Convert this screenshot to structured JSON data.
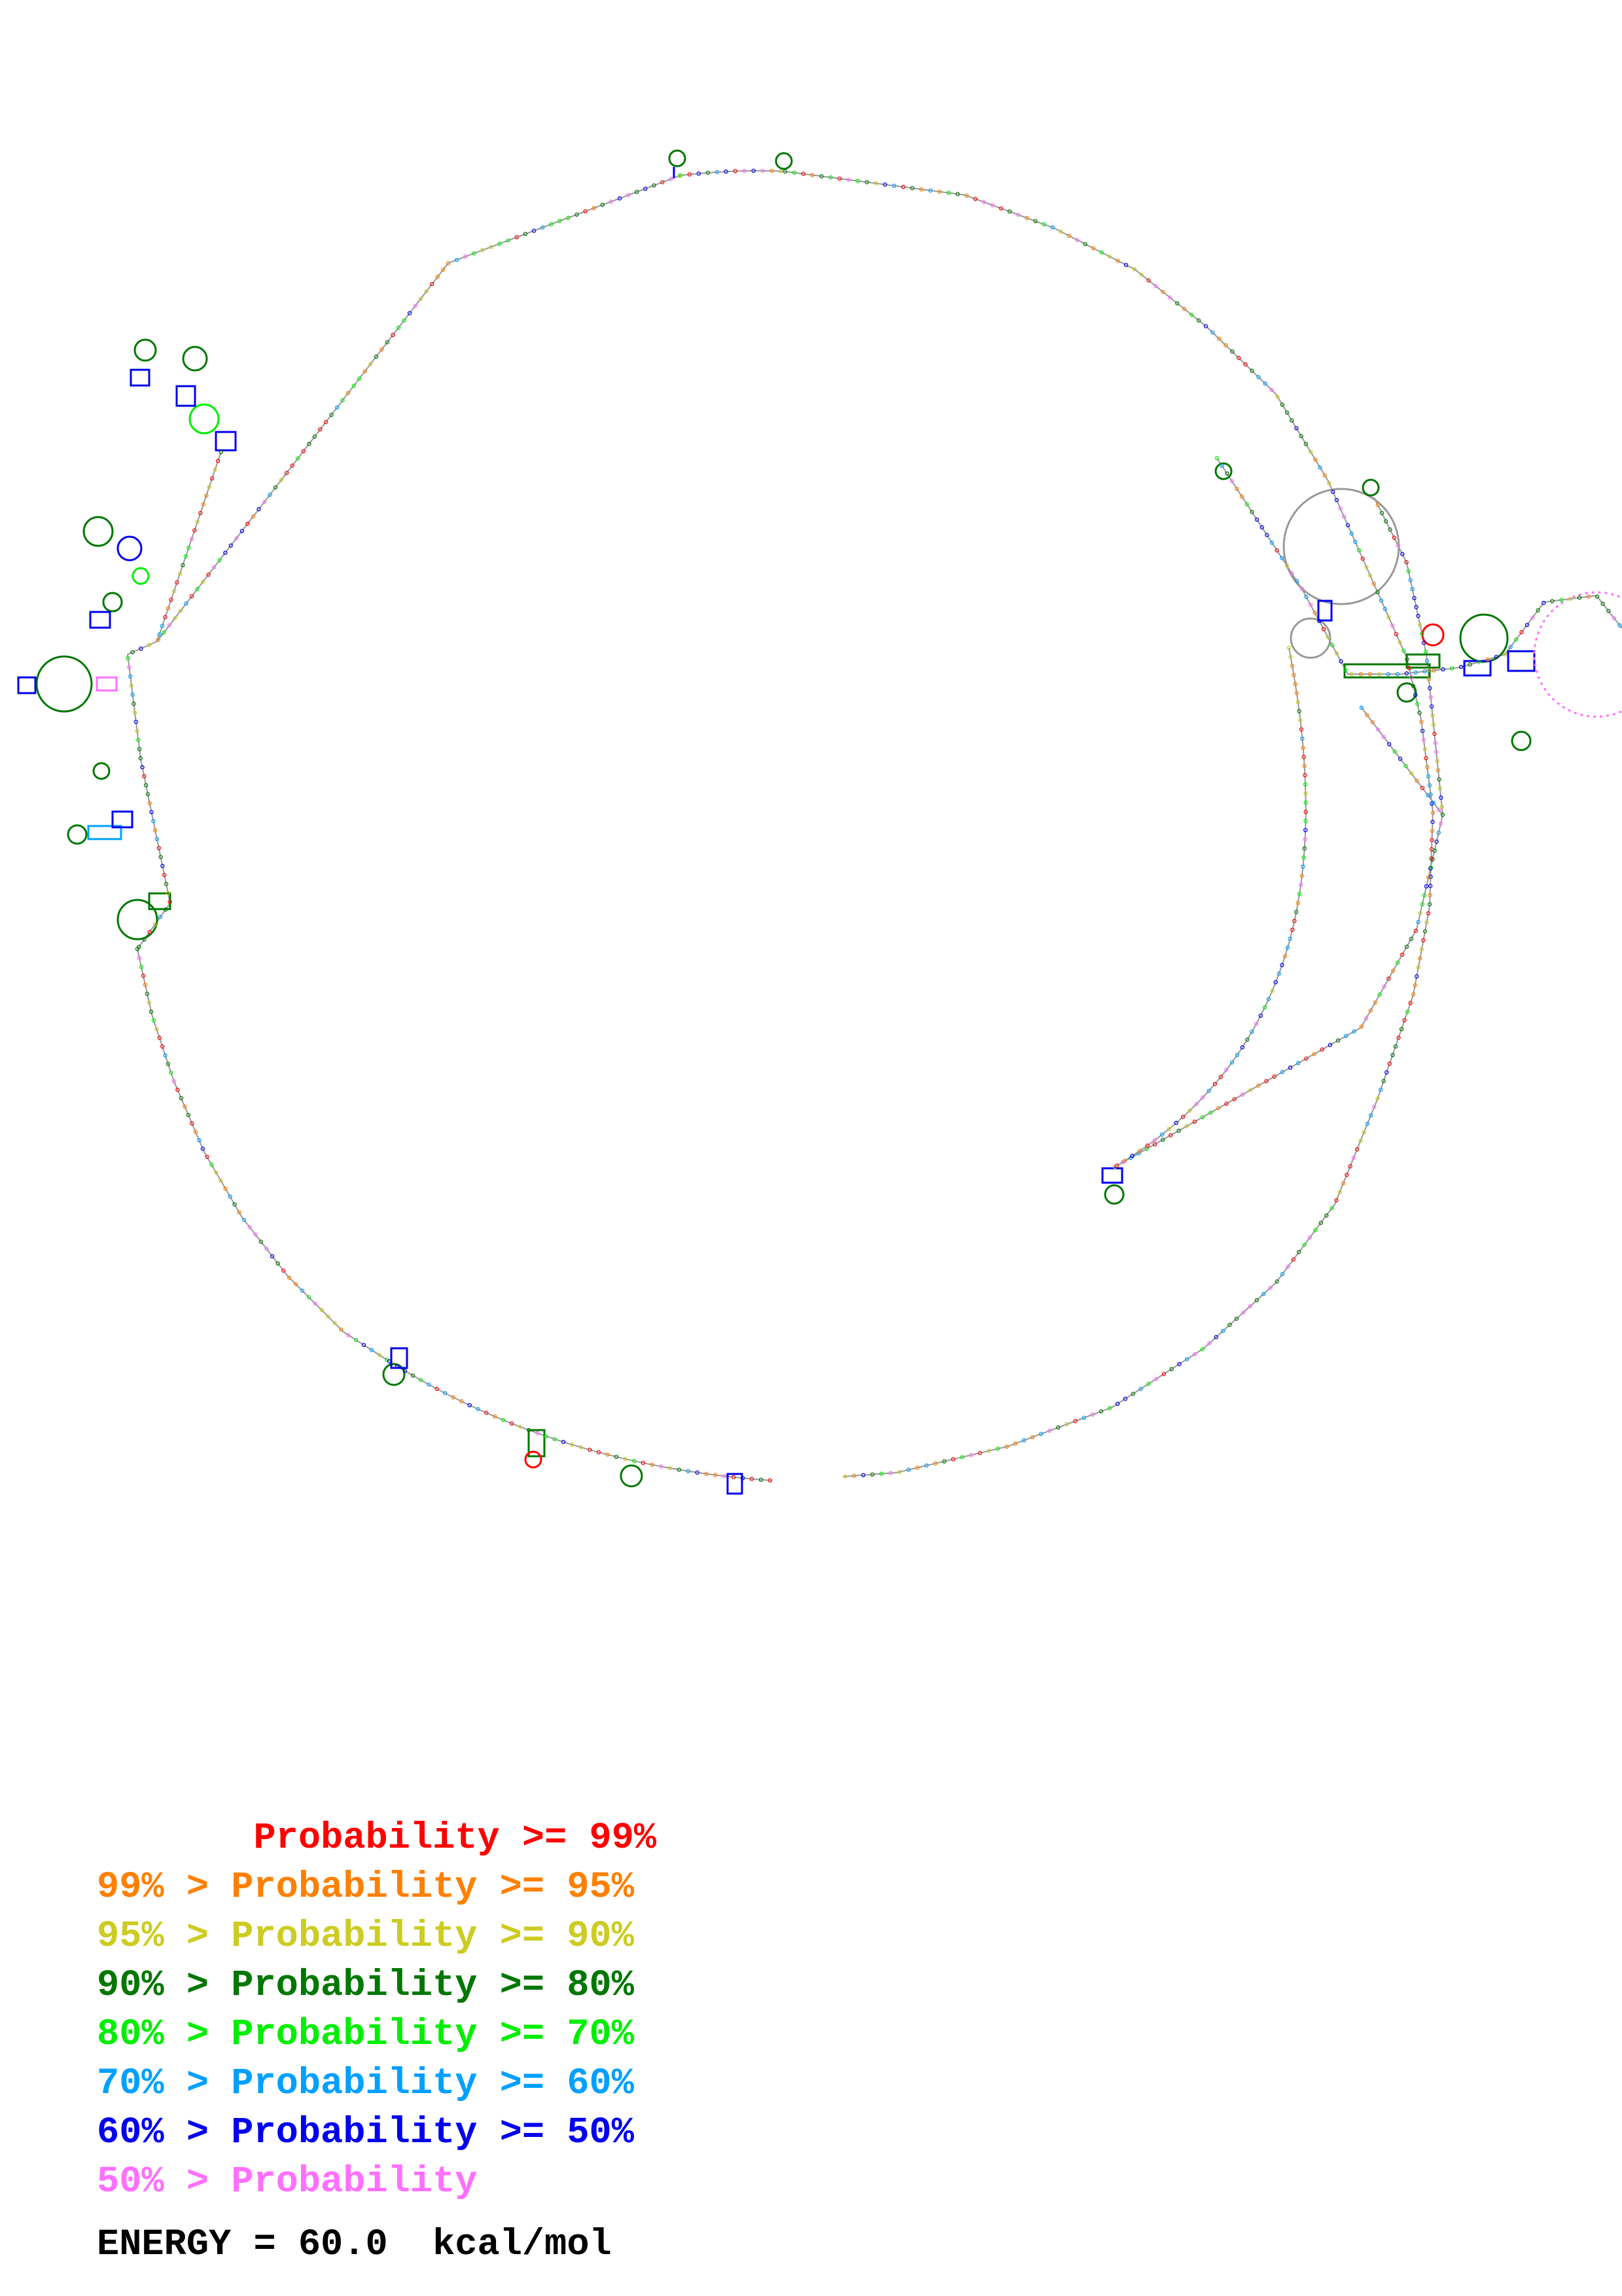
{
  "legend": [
    {
      "text": "       Probability >= 99%",
      "color": "#ff0000"
    },
    {
      "text": "99% > Probability >= 95%",
      "color": "#ff8000"
    },
    {
      "text": "95% > Probability >= 90%",
      "color": "#cccc22"
    },
    {
      "text": "90% > Probability >= 80%",
      "color": "#007700"
    },
    {
      "text": "80% > Probability >= 70%",
      "color": "#00ee00"
    },
    {
      "text": "70% > Probability >= 60%",
      "color": "#00a0ff"
    },
    {
      "text": "60% > Probability >= 50%",
      "color": "#0000ee"
    },
    {
      "text": "50% > Probability",
      "color": "#ff70ff"
    }
  ],
  "energy": {
    "label": "ENERGY = 60.0  kcal/mol"
  },
  "diagram": {
    "backbone_color": "#888888",
    "base_colors": [
      "#ff0000",
      "#ff8000",
      "#cccc22",
      "#007700",
      "#00ee00",
      "#00a0ff",
      "#0000ee",
      "#ff70ff"
    ]
  }
}
